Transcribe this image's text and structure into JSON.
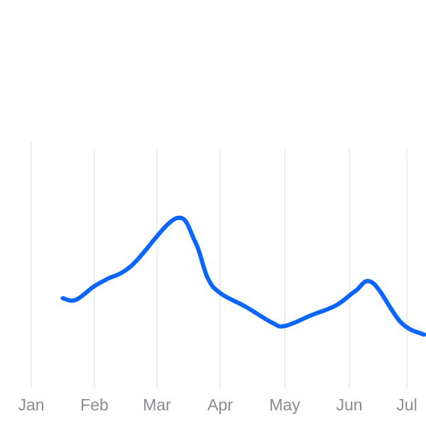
{
  "chart_data": {
    "type": "line",
    "title": "",
    "xlabel": "",
    "ylabel": "",
    "categories": [
      "Jan",
      "Feb",
      "Mar",
      "Apr",
      "May",
      "Jun",
      "Jul"
    ],
    "grid": "vertical",
    "legend": "none",
    "series": [
      {
        "color": "#0a66ff",
        "points": [
          {
            "x": 0.5,
            "y": 52
          },
          {
            "x": 0.7,
            "y": 51
          },
          {
            "x": 1.0,
            "y": 59
          },
          {
            "x": 1.2,
            "y": 63
          },
          {
            "x": 1.6,
            "y": 71
          },
          {
            "x": 2.3,
            "y": 98
          },
          {
            "x": 2.6,
            "y": 85
          },
          {
            "x": 2.8,
            "y": 64
          },
          {
            "x": 3.0,
            "y": 55
          },
          {
            "x": 3.4,
            "y": 47
          },
          {
            "x": 3.8,
            "y": 38
          },
          {
            "x": 4.0,
            "y": 36
          },
          {
            "x": 4.4,
            "y": 42
          },
          {
            "x": 4.8,
            "y": 48
          },
          {
            "x": 5.1,
            "y": 56
          },
          {
            "x": 5.4,
            "y": 61
          },
          {
            "x": 5.9,
            "y": 38
          },
          {
            "x": 6.3,
            "y": 31
          }
        ]
      }
    ],
    "ylim": [
      0,
      140
    ]
  }
}
